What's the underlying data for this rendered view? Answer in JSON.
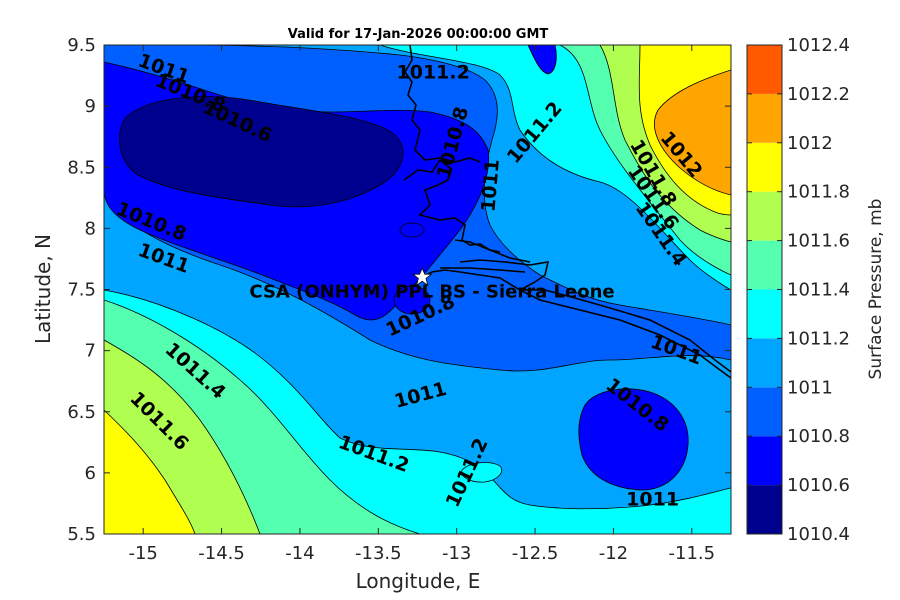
{
  "title": "Valid for 17-Jan-2026 00:00:00 GMT",
  "site_label": "CSA (ONHYM) PPL BS  - Sierra Leone",
  "colorbar_label": "Surface Pressure, mb",
  "chart_data": {
    "type": "heatmap",
    "subtype": "filled-contour map",
    "title": "Valid for 17-Jan-2026 00:00:00 GMT",
    "xlabel": "Longitude, E",
    "ylabel": "Latitude, N",
    "xlim": [
      -15.25,
      -11.25
    ],
    "ylim": [
      5.5,
      9.5
    ],
    "x_ticks": [
      -15,
      -14.5,
      -14,
      -13.5,
      -13,
      -12.5,
      -12,
      -11.5
    ],
    "x_tick_labels": [
      "-15",
      "-14.5",
      "-14",
      "-13.5",
      "-13",
      "-12.5",
      "-12",
      "-11.5"
    ],
    "y_ticks": [
      5.5,
      6,
      6.5,
      7,
      7.5,
      8,
      8.5,
      9,
      9.5
    ],
    "y_tick_labels": [
      "5.5",
      "6",
      "6.5",
      "7",
      "7.5",
      "8",
      "8.5",
      "9",
      "9.5"
    ],
    "colorbar": {
      "label": "Surface Pressure, mb",
      "levels": [
        1010.4,
        1010.6,
        1010.8,
        1011,
        1011.2,
        1011.4,
        1011.6,
        1011.8,
        1012,
        1012.2,
        1012.4
      ],
      "level_labels": [
        "1010.4",
        "1010.6",
        "1010.8",
        "1011",
        "1011.2",
        "1011.4",
        "1011.6",
        "1011.8",
        "1012",
        "1012.2",
        "1012.4"
      ],
      "colors": [
        "#00008f",
        "#0000ff",
        "#0060ff",
        "#00a5ff",
        "#00ffff",
        "#55ffb0",
        "#b0ff50",
        "#ffff00",
        "#ffa500",
        "#ff5a00",
        "#ff0000"
      ]
    },
    "contour_labels": [
      {
        "text": "1011",
        "lon": -14.87,
        "lat": 9.3,
        "angle": 20
      },
      {
        "text": "1010.8",
        "lon": -14.7,
        "lat": 9.1,
        "angle": 22
      },
      {
        "text": "1010.6",
        "lon": -14.4,
        "lat": 8.87,
        "angle": 25
      },
      {
        "text": "1011.2",
        "lon": -13.15,
        "lat": 9.27,
        "angle": 0
      },
      {
        "text": "1010.8",
        "lon": -13.02,
        "lat": 8.7,
        "angle": -75
      },
      {
        "text": "1011.2",
        "lon": -12.5,
        "lat": 8.78,
        "angle": -50
      },
      {
        "text": "1011",
        "lon": -12.78,
        "lat": 8.35,
        "angle": -85
      },
      {
        "text": "1010.8",
        "lon": -14.95,
        "lat": 8.05,
        "angle": 22
      },
      {
        "text": "1011",
        "lon": -14.87,
        "lat": 7.75,
        "angle": 20
      },
      {
        "text": "1011.4",
        "lon": -14.67,
        "lat": 6.83,
        "angle": 42
      },
      {
        "text": "1011.6",
        "lon": -14.9,
        "lat": 6.42,
        "angle": 45
      },
      {
        "text": "1010.8",
        "lon": -13.23,
        "lat": 7.28,
        "angle": -25
      },
      {
        "text": "1011",
        "lon": -13.23,
        "lat": 6.63,
        "angle": -15
      },
      {
        "text": "1011.2",
        "lon": -13.53,
        "lat": 6.15,
        "angle": 20
      },
      {
        "text": "1011.2",
        "lon": -12.93,
        "lat": 6.0,
        "angle": -65
      },
      {
        "text": "1012",
        "lon": -11.57,
        "lat": 8.6,
        "angle": 50
      },
      {
        "text": "1011.8",
        "lon": -11.75,
        "lat": 8.45,
        "angle": 60
      },
      {
        "text": "1011.6",
        "lon": -11.75,
        "lat": 8.25,
        "angle": 55
      },
      {
        "text": "1011.4",
        "lon": -11.7,
        "lat": 7.95,
        "angle": 55
      },
      {
        "text": "1011",
        "lon": -11.6,
        "lat": 7.0,
        "angle": 20
      },
      {
        "text": "1010.8",
        "lon": -11.85,
        "lat": 6.55,
        "angle": 38
      },
      {
        "text": "1011",
        "lon": -11.75,
        "lat": 5.78,
        "angle": 0
      }
    ],
    "site": {
      "name": "CSA (ONHYM) PPL BS  - Sierra Leone",
      "lon": -13.22,
      "lat": 7.6,
      "marker": "star"
    }
  }
}
